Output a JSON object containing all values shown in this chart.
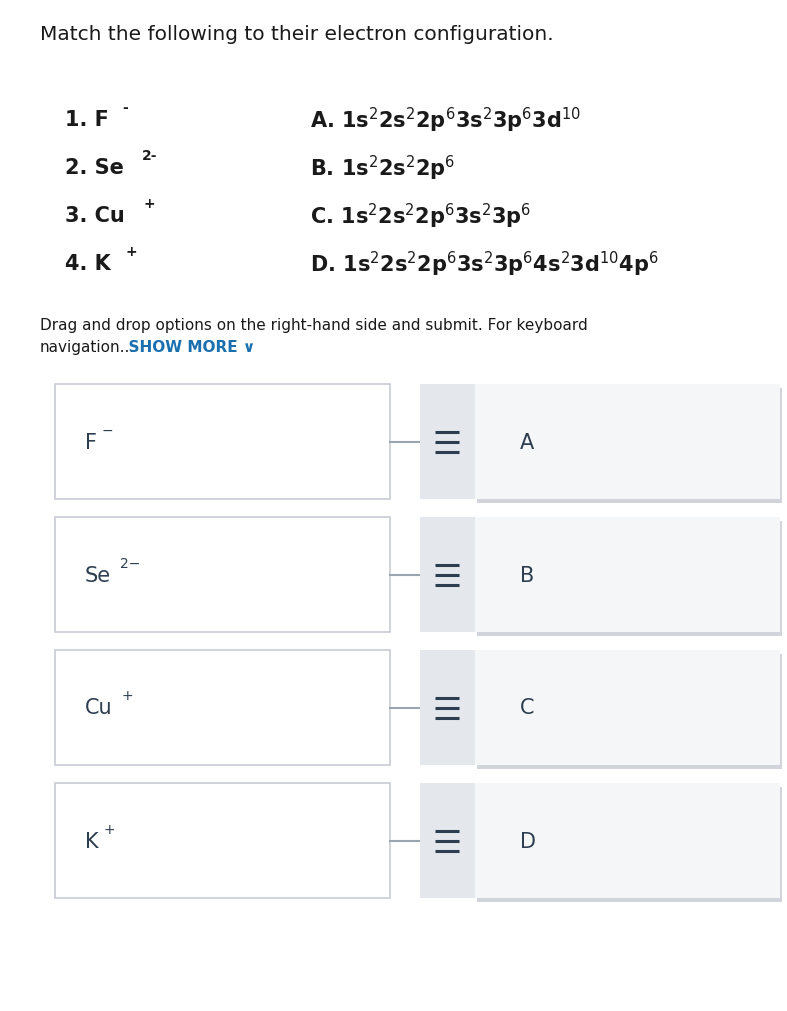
{
  "title": "Match the following to their electron configuration.",
  "title_fontsize": 14.5,
  "title_color": "#1a1a1a",
  "bg_color": "#ffffff",
  "drag_text1": "Drag and drop options on the right-hand side and submit. For keyboard",
  "drag_text2": "navigation...",
  "show_more_text": "  SHOW MORE ∨",
  "show_more_color": "#1a6faf",
  "text_color": "#1a1a1a",
  "box_label_color": "#2d3e50",
  "hamburger_color": "#2d3e50",
  "connector_color": "#9aa5b1",
  "left_box_border": "#c8cdd4",
  "left_box_bg": "#ffffff",
  "handle_bg": "#e4e7eb",
  "right_box_bg": "#f5f6f7",
  "right_box_shadow": "#d1d5db",
  "numbered_items": [
    {
      "num": "1. ",
      "elem": "F",
      "sup": "-"
    },
    {
      "num": "2. ",
      "elem": "Se",
      "sup": "2-"
    },
    {
      "num": "3. ",
      "elem": "Cu",
      "sup": "+"
    },
    {
      "num": "4. ",
      "elem": "K",
      "sup": "+"
    }
  ],
  "config_items": [
    {
      "letter": "A.",
      "config_parts": [
        {
          "text": "1s",
          "sup": "2"
        },
        {
          "text": "2s",
          "sup": "2"
        },
        {
          "text": "2p",
          "sup": "6"
        },
        {
          "text": "3s",
          "sup": "2"
        },
        {
          "text": "3p",
          "sup": "6"
        },
        {
          "text": "3d",
          "sup": "10"
        }
      ]
    },
    {
      "letter": "B.",
      "config_parts": [
        {
          "text": "1s",
          "sup": "2"
        },
        {
          "text": "2s",
          "sup": "2"
        },
        {
          "text": "2p",
          "sup": "6"
        }
      ]
    },
    {
      "letter": "C.",
      "config_parts": [
        {
          "text": "1s",
          "sup": "2"
        },
        {
          "text": "2s",
          "sup": "2"
        },
        {
          "text": "2p",
          "sup": "6"
        },
        {
          "text": "3s",
          "sup": "2"
        },
        {
          "text": "3p",
          "sup": "6"
        }
      ]
    },
    {
      "letter": "D.",
      "config_parts": [
        {
          "text": "1s",
          "sup": "2"
        },
        {
          "text": "2s",
          "sup": "2"
        },
        {
          "text": "2p",
          "sup": "6"
        },
        {
          "text": "3s",
          "sup": "2"
        },
        {
          "text": "3p",
          "sup": "6"
        },
        {
          "text": "4s",
          "sup": "2"
        },
        {
          "text": "3d",
          "sup": "10"
        },
        {
          "text": "4p",
          "sup": "6"
        }
      ]
    }
  ],
  "box_items": [
    {
      "left_elem": "F",
      "left_sup": "−",
      "right_letter": "A"
    },
    {
      "left_elem": "Se",
      "left_sup": "2−",
      "right_letter": "B"
    },
    {
      "left_elem": "Cu",
      "left_sup": "+",
      "right_letter": "C"
    },
    {
      "left_elem": "K",
      "left_sup": "+",
      "right_letter": "D"
    }
  ]
}
